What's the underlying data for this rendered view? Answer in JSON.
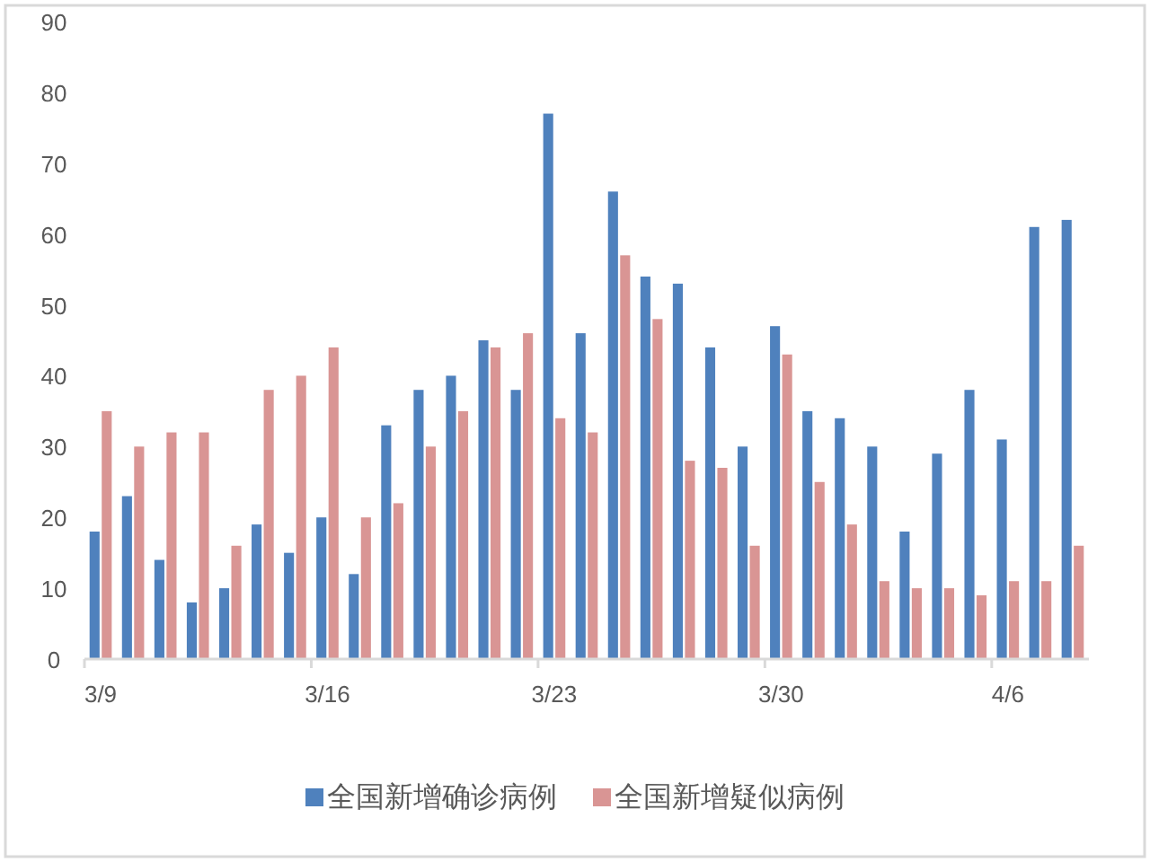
{
  "chart_data": {
    "type": "bar",
    "categories": [
      "3/9",
      null,
      null,
      null,
      null,
      null,
      null,
      "3/16",
      null,
      null,
      null,
      null,
      null,
      null,
      "3/23",
      null,
      null,
      null,
      null,
      null,
      null,
      "3/30",
      null,
      null,
      null,
      null,
      null,
      null,
      "4/6",
      null,
      null
    ],
    "series": [
      {
        "name": "全国新增确诊病例",
        "color": "#4f81bd",
        "values": [
          18,
          23,
          14,
          8,
          10,
          19,
          15,
          20,
          12,
          33,
          38,
          40,
          45,
          38,
          77,
          46,
          66,
          54,
          53,
          44,
          30,
          47,
          35,
          34,
          30,
          18,
          29,
          38,
          31,
          61,
          62
        ]
      },
      {
        "name": "全国新增疑似病例",
        "color": "#d99594",
        "values": [
          35,
          30,
          32,
          32,
          16,
          38,
          40,
          44,
          20,
          22,
          30,
          35,
          44,
          46,
          34,
          32,
          57,
          48,
          28,
          27,
          16,
          43,
          25,
          19,
          11,
          10,
          10,
          9,
          11,
          11,
          16
        ]
      }
    ],
    "ylim": [
      0,
      90
    ],
    "yticks": [
      0,
      10,
      20,
      30,
      40,
      50,
      60,
      70,
      80,
      90
    ],
    "grid": false,
    "legend": "bottom"
  }
}
